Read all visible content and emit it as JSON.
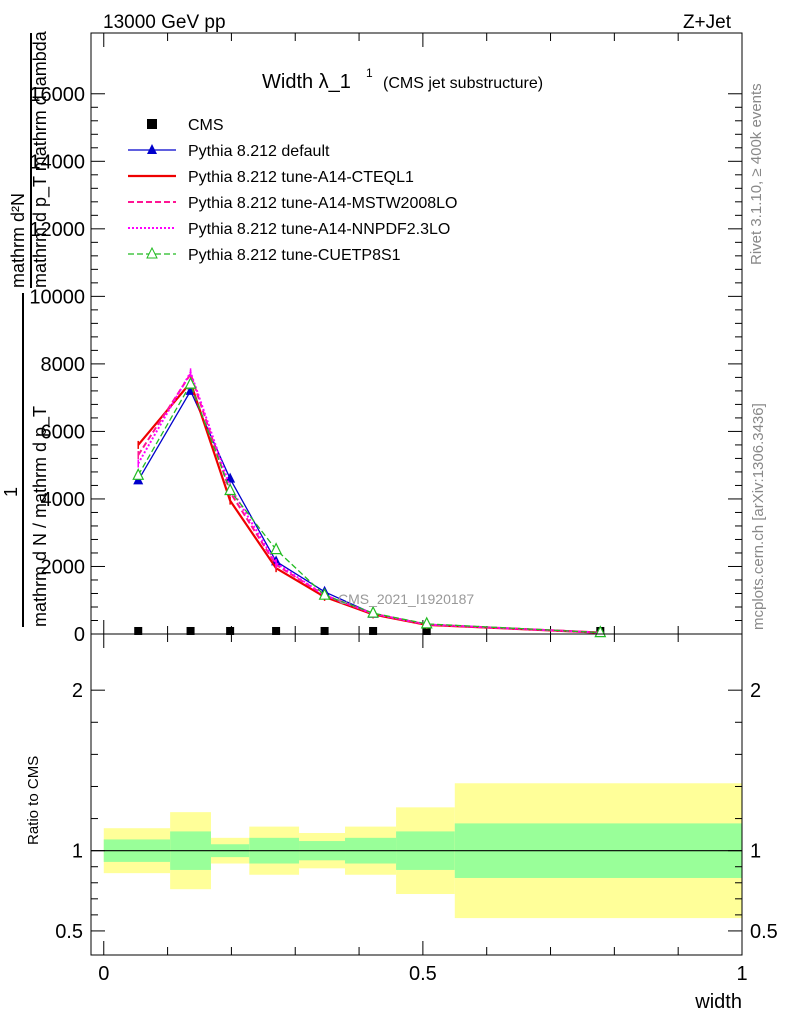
{
  "header": {
    "energy": "13000 GeV pp",
    "process": "Z+Jet",
    "title_main": "Width λ_1",
    "title_sup": "1",
    "title_sub": "(CMS jet substructure)",
    "analysis": "CMS_2021_I1920187",
    "rivet": "Rivet 3.1.10, ≥ 400k events",
    "mcplots": "mcplots.cern.ch [arXiv:1306.3436]"
  },
  "ylabel": {
    "numerator": "mathrm d²N",
    "denominator": "mathrm d p_T mathrm d lambda",
    "frac_one": "1",
    "frac_den": "mathrm d N / mathrm d p_T"
  },
  "ratio_ylabel": "Ratio to CMS",
  "xlabel": "width",
  "colors": {
    "cms": "#000000",
    "default": "#0000cc",
    "cteql1": "#ee0000",
    "mstw": "#ff1493",
    "nnpdf": "#ff00ff",
    "cuetp": "#22bb22",
    "band_inner": "#99ff99",
    "band_outer": "#ffff99"
  },
  "chart_data": [
    {
      "type": "line",
      "panel": "main",
      "xlim": [
        -0.02,
        1.0
      ],
      "ylim": [
        0,
        17800
      ],
      "yticks": [
        0,
        2000,
        4000,
        6000,
        8000,
        10000,
        12000,
        14000,
        16000
      ],
      "ytick_labels": [
        "0",
        "2000",
        "4000",
        "6000",
        "8000",
        "10000",
        "12000",
        "14000",
        "16000"
      ],
      "x": [
        0.054,
        0.136,
        0.198,
        0.27,
        0.346,
        0.422,
        0.506,
        0.778
      ],
      "series": [
        {
          "name": "CMS",
          "marker": "square",
          "values": [
            30,
            30,
            30,
            30,
            30,
            30,
            30,
            30
          ]
        },
        {
          "name": "Pythia 8.212 default",
          "marker": "triangle",
          "values": [
            4550,
            7200,
            4600,
            2150,
            1250,
            600,
            280,
            40
          ]
        },
        {
          "name": "Pythia 8.212 tune-A14-CTEQL1",
          "marker": "none",
          "values": [
            5600,
            7450,
            3950,
            1950,
            1100,
            580,
            270,
            40
          ]
        },
        {
          "name": "Pythia 8.212 tune-A14-MSTW2008LO",
          "marker": "none",
          "values": [
            5300,
            7700,
            4200,
            2050,
            1150,
            600,
            280,
            40
          ]
        },
        {
          "name": "Pythia 8.212 tune-A14-NNPDF2.3LO",
          "marker": "none",
          "values": [
            5050,
            7750,
            4350,
            2100,
            1150,
            600,
            280,
            40
          ]
        },
        {
          "name": "Pythia 8.212 tune-CUETP8S1",
          "marker": "triangle-open",
          "values": [
            4700,
            7400,
            4250,
            2500,
            1150,
            620,
            300,
            40
          ]
        }
      ]
    },
    {
      "type": "area",
      "panel": "ratio",
      "xlim": [
        -0.02,
        1.0
      ],
      "ylim": [
        0.35,
        2.35
      ],
      "yticks": [
        0.5,
        1,
        2
      ],
      "ytick_labels": [
        "0.5",
        "1",
        "2"
      ],
      "xticks": [
        0,
        0.5,
        1
      ],
      "xtick_labels": [
        "0",
        "0.5",
        "1"
      ],
      "bins": [
        {
          "lo": 0.0,
          "hi": 0.104,
          "inner": [
            0.93,
            1.07
          ],
          "outer": [
            0.86,
            1.14
          ]
        },
        {
          "lo": 0.104,
          "hi": 0.168,
          "inner": [
            0.88,
            1.12
          ],
          "outer": [
            0.76,
            1.24
          ]
        },
        {
          "lo": 0.168,
          "hi": 0.228,
          "inner": [
            0.96,
            1.04
          ],
          "outer": [
            0.92,
            1.08
          ]
        },
        {
          "lo": 0.228,
          "hi": 0.306,
          "inner": [
            0.92,
            1.08
          ],
          "outer": [
            0.85,
            1.15
          ]
        },
        {
          "lo": 0.306,
          "hi": 0.378,
          "inner": [
            0.94,
            1.06
          ],
          "outer": [
            0.89,
            1.11
          ]
        },
        {
          "lo": 0.378,
          "hi": 0.458,
          "inner": [
            0.92,
            1.08
          ],
          "outer": [
            0.85,
            1.15
          ]
        },
        {
          "lo": 0.458,
          "hi": 0.55,
          "inner": [
            0.88,
            1.12
          ],
          "outer": [
            0.73,
            1.27
          ]
        },
        {
          "lo": 0.55,
          "hi": 1.0,
          "inner": [
            0.83,
            1.17
          ],
          "outer": [
            0.58,
            1.42
          ]
        }
      ]
    }
  ]
}
